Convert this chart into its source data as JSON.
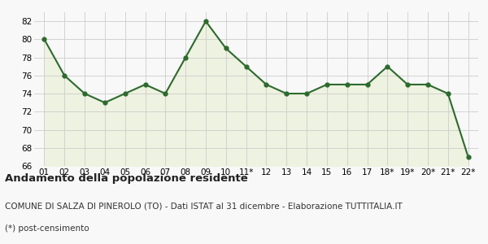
{
  "x_labels": [
    "01",
    "02",
    "03",
    "04",
    "05",
    "06",
    "07",
    "08",
    "09",
    "10",
    "11*",
    "12",
    "13",
    "14",
    "15",
    "16",
    "17",
    "18*",
    "19*",
    "20*",
    "21*",
    "22*"
  ],
  "y_values": [
    80,
    76,
    74,
    73,
    74,
    75,
    74,
    78,
    82,
    79,
    77,
    75,
    74,
    74,
    75,
    75,
    75,
    77,
    75,
    75,
    74,
    67
  ],
  "line_color": "#2d6a2d",
  "fill_color": "#eef2e0",
  "marker": "o",
  "marker_size": 3.5,
  "line_width": 1.5,
  "ylim": [
    66,
    83
  ],
  "yticks": [
    66,
    68,
    70,
    72,
    74,
    76,
    78,
    80,
    82
  ],
  "title": "Andamento della popolazione residente",
  "subtitle": "COMUNE DI SALZA DI PINEROLO (TO) - Dati ISTAT al 31 dicembre - Elaborazione TUTTITALIA.IT",
  "footnote": "(*) post-censimento",
  "title_fontsize": 9.5,
  "subtitle_fontsize": 7.5,
  "footnote_fontsize": 7.5,
  "tick_fontsize": 7.5,
  "bg_color": "#f8f8f8",
  "grid_color": "#cccccc"
}
